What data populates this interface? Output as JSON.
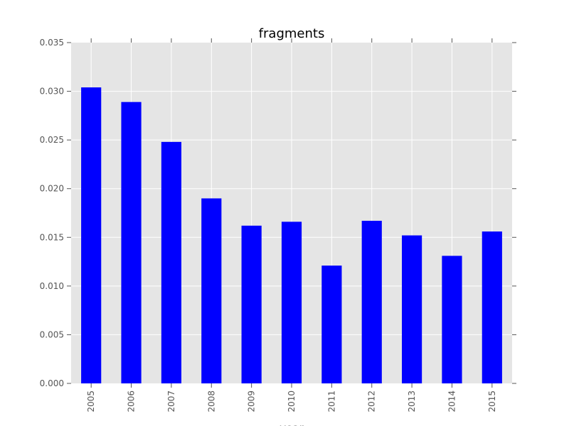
{
  "chart_data": {
    "type": "bar",
    "title": "fragments",
    "xlabel": "year",
    "ylabel": "",
    "categories": [
      "2005",
      "2006",
      "2007",
      "2008",
      "2009",
      "2010",
      "2011",
      "2012",
      "2013",
      "2014",
      "2015"
    ],
    "values": [
      0.0304,
      0.0289,
      0.0248,
      0.019,
      0.0162,
      0.0166,
      0.0121,
      0.0167,
      0.0152,
      0.0131,
      0.0156
    ],
    "ylim": [
      0,
      0.035
    ],
    "yticks": [
      "0.000",
      "0.005",
      "0.010",
      "0.015",
      "0.020",
      "0.025",
      "0.030",
      "0.035"
    ],
    "grid": true,
    "legend": "none",
    "colors": {
      "bar": "#0000ff",
      "plot_background": "#e5e5e5",
      "grid": "#ffffff",
      "tick_label": "#555555"
    }
  }
}
